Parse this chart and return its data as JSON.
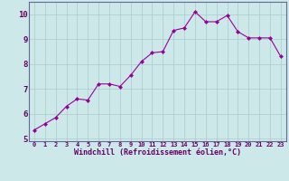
{
  "x": [
    0,
    1,
    2,
    3,
    4,
    5,
    6,
    7,
    8,
    9,
    10,
    11,
    12,
    13,
    14,
    15,
    16,
    17,
    18,
    19,
    20,
    21,
    22,
    23
  ],
  "y": [
    5.35,
    5.6,
    5.85,
    6.3,
    6.6,
    6.55,
    7.2,
    7.2,
    7.1,
    7.55,
    8.1,
    8.45,
    8.5,
    9.35,
    9.45,
    10.1,
    9.7,
    9.7,
    9.95,
    9.3,
    9.05,
    9.05,
    9.05,
    8.3
  ],
  "line_color": "#990099",
  "marker": "D",
  "marker_size": 2.0,
  "bg_color": "#cce8e8",
  "grid_color": "#aacccc",
  "xlabel": "Windchill (Refroidissement éolien,°C)",
  "xlabel_color": "#660066",
  "tick_color": "#660066",
  "ylim": [
    4.9,
    10.5
  ],
  "xlim": [
    -0.5,
    23.5
  ],
  "yticks": [
    5,
    6,
    7,
    8,
    9,
    10
  ],
  "xticks": [
    0,
    1,
    2,
    3,
    4,
    5,
    6,
    7,
    8,
    9,
    10,
    11,
    12,
    13,
    14,
    15,
    16,
    17,
    18,
    19,
    20,
    21,
    22,
    23
  ],
  "spine_color": "#666699",
  "axis_bg": "#cce8e8"
}
